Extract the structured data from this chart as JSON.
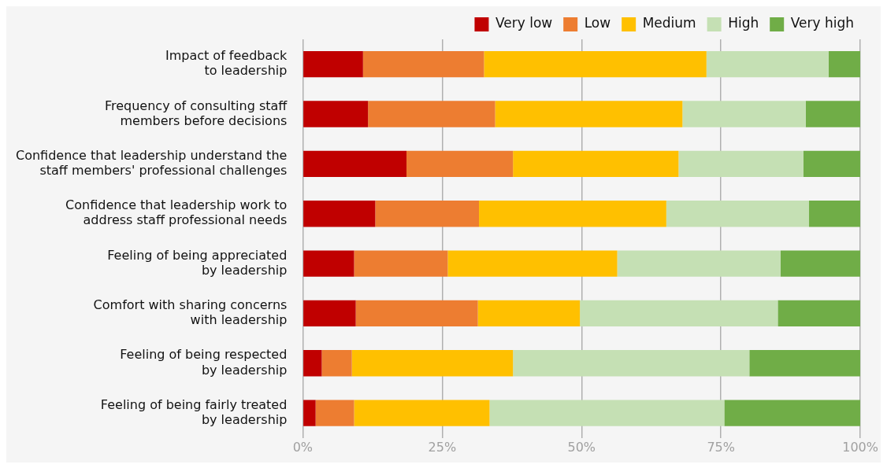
{
  "chart_data": {
    "type": "bar",
    "orientation": "horizontal",
    "stacked": true,
    "categories": [
      "Impact of feedback\nto leadership",
      "Frequency of consulting staff\nmembers before decisions",
      "Confidence that leadership understand the\nstaff members' professional challenges",
      "Confidence that leadership work to\naddress staff professional needs",
      "Feeling of being appreciated\nby leadership",
      "Comfort with sharing concerns\nwith leadership",
      "Feeling of being respected\nby leadership",
      "Feeling of being fairly treated\nby leadership"
    ],
    "series": [
      {
        "name": "Very low",
        "color": "#c00000",
        "values": [
          10.8,
          11.7,
          18.6,
          13.0,
          9.2,
          9.5,
          3.4,
          2.3
        ]
      },
      {
        "name": "Low",
        "color": "#ed7d31",
        "values": [
          21.7,
          22.8,
          19.1,
          18.6,
          16.8,
          21.9,
          5.4,
          6.9
        ]
      },
      {
        "name": "Medium",
        "color": "#ffc000",
        "values": [
          39.9,
          33.6,
          29.7,
          33.6,
          30.4,
          18.3,
          28.9,
          24.3
        ]
      },
      {
        "name": "High",
        "color": "#c5e0b4",
        "values": [
          21.9,
          22.1,
          22.4,
          25.6,
          29.3,
          35.5,
          42.4,
          42.1
        ]
      },
      {
        "name": "Very high",
        "color": "#70ad47",
        "values": [
          5.7,
          9.8,
          10.2,
          9.2,
          14.3,
          14.8,
          19.9,
          24.4
        ]
      }
    ],
    "xlim": [
      0,
      100
    ],
    "xticks": [
      {
        "value": 0,
        "label": "0%"
      },
      {
        "value": 25,
        "label": "25%"
      },
      {
        "value": 50,
        "label": "50%"
      },
      {
        "value": 75,
        "label": "75%"
      },
      {
        "value": 100,
        "label": "100%"
      }
    ],
    "grid": "x",
    "legend": "top right"
  }
}
